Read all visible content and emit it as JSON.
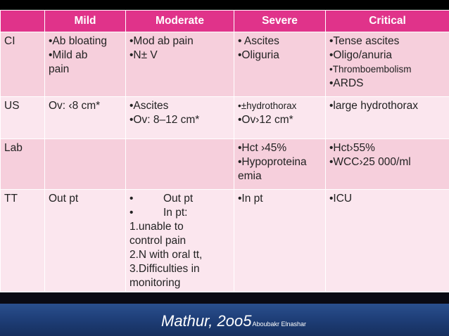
{
  "header": [
    "",
    "Mild",
    "Moderate",
    "Severe",
    "Critical"
  ],
  "rows": [
    {
      "label": "CI",
      "mild": [
        "•Ab bloating",
        "•Mild ab",
        "pain"
      ],
      "moderate": [
        "•Mod ab pain",
        "•N± V"
      ],
      "severe": [
        "• Ascites",
        "•Oliguria"
      ],
      "critical": [
        "•Tense ascites",
        "•Oligo/anuria",
        "•Thromboembolism",
        "•ARDS"
      ]
    },
    {
      "label": "US",
      "mild": [
        "Ov: ‹8 cm*"
      ],
      "moderate": [
        "•Ascites",
        "•Ov: 8–12 cm*"
      ],
      "severe": [
        "•±hydrothorax",
        "•Ov›12 cm*"
      ],
      "critical": [
        "•large hydrothorax"
      ]
    },
    {
      "label": "Lab",
      "mild": [],
      "moderate": [],
      "severe": [
        "•Hct ›45%",
        "•Hypoproteina",
        "emia"
      ],
      "critical": [
        "•Hct›55%",
        "•WCC›25 000/ml"
      ]
    },
    {
      "label": "TT",
      "mild": [
        "Out pt"
      ],
      "moderate": [
        {
          "bullet": "•",
          "text": "Out pt"
        },
        {
          "bullet": "•",
          "text": "In pt:"
        },
        "1.unable to",
        "control pain",
        "2.N with oral tt,",
        "3.Difficulties in",
        "monitoring"
      ],
      "severe": [
        "•In pt"
      ],
      "critical": [
        "•ICU"
      ]
    }
  ],
  "footer": {
    "citation": "Mathur, 2oo5",
    "author": "Aboubakr Elnashar"
  },
  "colors": {
    "header_bg": "#e0338a",
    "row_dark": "#f6cfdc",
    "row_light": "#fbe6ee",
    "footer_bg": "#1d3c74"
  }
}
